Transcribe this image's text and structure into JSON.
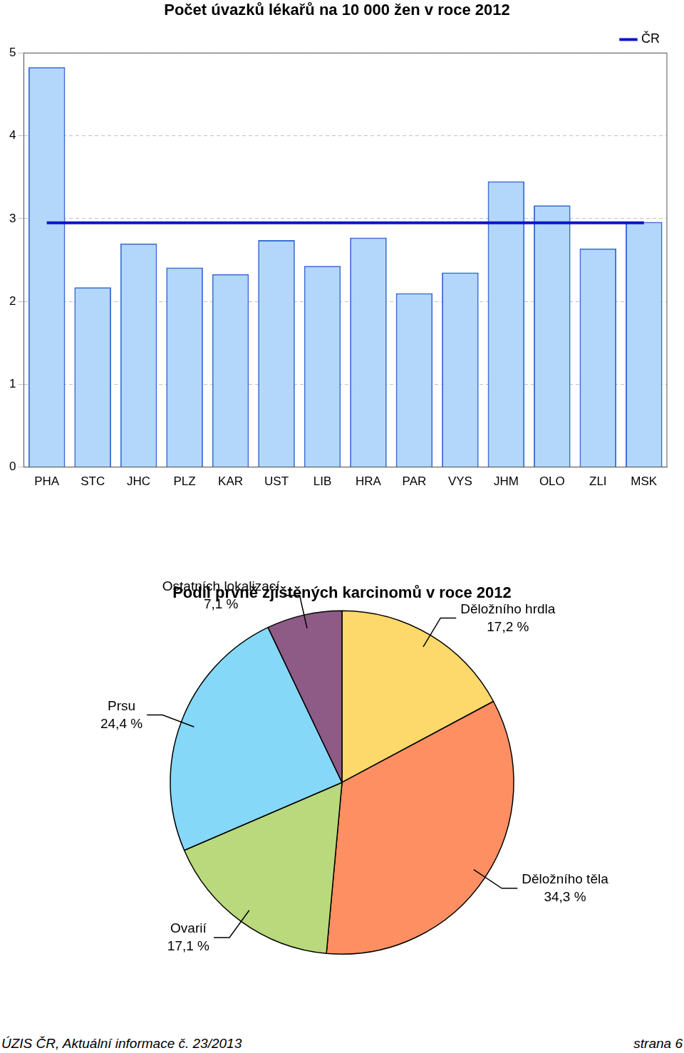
{
  "chart_data": [
    {
      "type": "bar",
      "title": "Počet úvazků lékařů na 10 000 žen v roce 2012",
      "categories": [
        "PHA",
        "STC",
        "JHC",
        "PLZ",
        "KAR",
        "UST",
        "LIB",
        "HRA",
        "PAR",
        "VYS",
        "JHM",
        "OLO",
        "ZLI",
        "MSK"
      ],
      "series": [
        {
          "type": "bar",
          "color": "#b3d7fb",
          "values": [
            4.83,
            2.17,
            2.7,
            2.41,
            2.33,
            2.74,
            2.43,
            2.77,
            2.1,
            2.35,
            3.45,
            3.16,
            2.64,
            2.96
          ]
        },
        {
          "name": "ČR",
          "type": "line",
          "color": "#0a14c8",
          "values": [
            2.95,
            2.95,
            2.95,
            2.95,
            2.95,
            2.95,
            2.95,
            2.95,
            2.95,
            2.95,
            2.95,
            2.95,
            2.95,
            2.95
          ]
        }
      ],
      "ylim": [
        0,
        5
      ],
      "yticks": [
        0,
        1,
        2,
        3,
        4,
        5
      ],
      "grid": true,
      "legend": "top-right"
    },
    {
      "type": "pie",
      "title": "Podíl prvně zjištěných karcinomů v roce 2012",
      "categories": [
        "Děložního hrdla",
        "Děložního těla",
        "Ovarií",
        "Prsu",
        "Ostatních lokalizací"
      ],
      "values": [
        17.2,
        34.3,
        17.1,
        24.4,
        7.1
      ],
      "value_labels": [
        "17,2 %",
        "34,3 %",
        "17,1 %",
        "24,4 %",
        "7,1 %"
      ],
      "colors": [
        "#fcd96a",
        "#fd8f62",
        "#b9d97c",
        "#86d8f8",
        "#8e5a86"
      ],
      "data_labels": true
    }
  ],
  "footer": {
    "left": "ÚZIS ČR, Aktuální informace č. 23/2013",
    "right": "strana 6"
  }
}
